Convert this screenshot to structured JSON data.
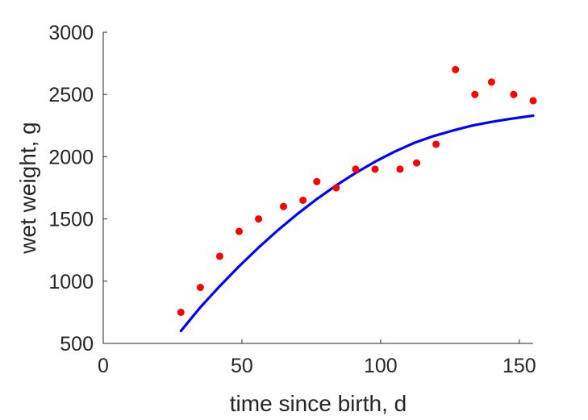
{
  "chart_data": {
    "type": "scatter",
    "xlabel": "time since birth, d",
    "ylabel": "wet weight, g",
    "xlim": [
      0,
      155
    ],
    "ylim": [
      500,
      3000
    ],
    "xticks": [
      0,
      50,
      100,
      150
    ],
    "yticks": [
      500,
      1000,
      1500,
      2000,
      2500,
      3000
    ],
    "grid": false,
    "series": [
      {
        "kind": "scatter",
        "color": "#ff0000",
        "x": [
          28,
          35,
          42,
          49,
          56,
          65,
          72,
          77,
          84,
          91,
          98,
          107,
          113,
          120,
          127,
          134,
          140,
          148,
          155
        ],
        "y": [
          750,
          950,
          1200,
          1400,
          1500,
          1600,
          1650,
          1800,
          1750,
          1900,
          1900,
          1900,
          1950,
          2100,
          2700,
          2500,
          2600,
          2500,
          2450
        ]
      },
      {
        "kind": "line",
        "color": "#0000ff",
        "x": [
          28,
          35,
          42,
          49,
          56,
          63,
          70,
          77,
          84,
          91,
          98,
          105,
          112,
          119,
          126,
          133,
          140,
          147,
          155
        ],
        "y": [
          600,
          790,
          960,
          1120,
          1270,
          1410,
          1540,
          1660,
          1770,
          1870,
          1960,
          2040,
          2110,
          2165,
          2210,
          2250,
          2280,
          2305,
          2330
        ]
      }
    ]
  }
}
